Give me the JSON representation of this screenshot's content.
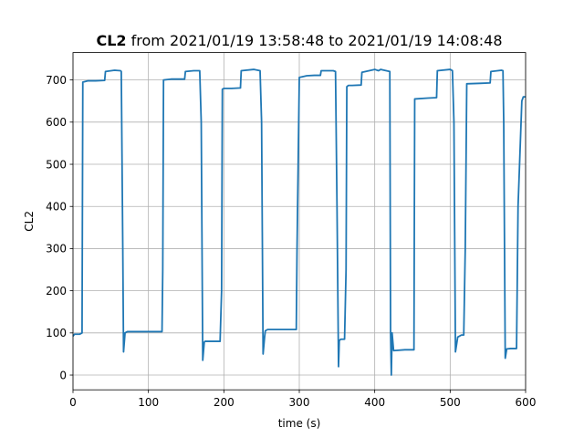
{
  "chart_data": {
    "type": "line",
    "title_bold": "CL2",
    "title_rest": " from 2021/01/19 13:58:48 to 2021/01/19 14:08:48",
    "xlabel": "time (s)",
    "ylabel": "CL2",
    "xlim": [
      0,
      600
    ],
    "ylim": [
      -35,
      765
    ],
    "xticks": [
      0,
      100,
      200,
      300,
      400,
      500,
      600
    ],
    "yticks": [
      0,
      100,
      200,
      300,
      400,
      500,
      600,
      700
    ],
    "grid": true,
    "line_color": "#1f77b4",
    "series": [
      {
        "x": [
          0,
          2,
          5,
          9,
          12,
          13,
          20,
          30,
          42,
          43,
          55,
          63,
          64,
          66,
          67,
          69,
          72,
          80,
          100,
          118,
          119,
          120,
          130,
          148,
          149,
          160,
          168,
          170,
          172,
          174,
          175,
          177,
          180,
          195,
          197,
          198,
          200,
          210,
          222,
          223,
          240,
          248,
          250,
          252,
          254,
          255,
          258,
          270,
          290,
          296,
          297,
          300,
          310,
          320,
          328,
          329,
          345,
          348,
          350,
          352,
          353,
          355,
          360,
          362,
          363,
          365,
          370,
          382,
          383,
          400,
          405,
          408,
          420,
          421,
          422,
          423,
          425,
          440,
          452,
          453,
          470,
          482,
          483,
          500,
          503,
          505,
          507,
          510,
          515,
          518,
          520,
          522,
          540,
          553,
          554,
          568,
          570,
          571,
          573,
          575,
          580,
          588,
          590,
          595,
          597,
          600
        ],
        "y": [
          92,
          97,
          97,
          97,
          100,
          695,
          698,
          698,
          699,
          720,
          723,
          722,
          720,
          300,
          55,
          100,
          103,
          103,
          103,
          103,
          250,
          700,
          702,
          702,
          720,
          722,
          722,
          600,
          35,
          78,
          80,
          80,
          80,
          80,
          200,
          678,
          680,
          680,
          681,
          722,
          725,
          722,
          600,
          50,
          90,
          105,
          108,
          108,
          108,
          108,
          300,
          706,
          710,
          711,
          711,
          722,
          722,
          720,
          400,
          20,
          82,
          85,
          85,
          250,
          684,
          687,
          687,
          688,
          718,
          725,
          722,
          725,
          720,
          100,
          0,
          100,
          58,
          60,
          60,
          655,
          657,
          658,
          722,
          725,
          722,
          600,
          55,
          90,
          95,
          95,
          300,
          691,
          692,
          693,
          720,
          723,
          722,
          600,
          40,
          62,
          63,
          63,
          400,
          650,
          660,
          660
        ]
      }
    ]
  }
}
